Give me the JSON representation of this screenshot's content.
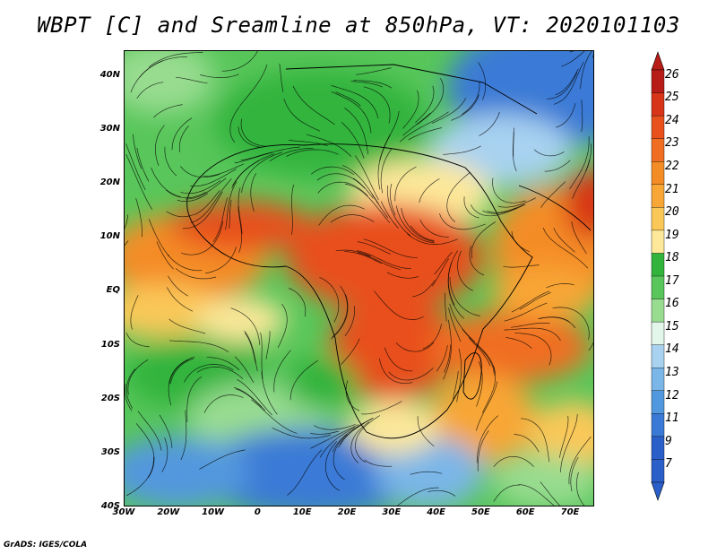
{
  "title": "WBPT [C] and Sreamline at 850hPa, VT: 2020101103",
  "footer": "GrADS: IGES/COLA",
  "y_ticks": [
    "40N",
    "30N",
    "20N",
    "10N",
    "EQ",
    "10S",
    "20S",
    "30S",
    "40S"
  ],
  "x_ticks": [
    "30W",
    "20W",
    "10W",
    "0",
    "10E",
    "20E",
    "30E",
    "40E",
    "50E",
    "60E",
    "70E"
  ],
  "colorbar": {
    "labels": [
      "26",
      "25",
      "24",
      "23",
      "22",
      "21",
      "20",
      "19",
      "18",
      "17",
      "16",
      "15",
      "14",
      "13",
      "12",
      "11",
      "9",
      "7"
    ],
    "colors": [
      "#b81c16",
      "#d83418",
      "#e8501c",
      "#f06e22",
      "#f48c26",
      "#f8a636",
      "#fac858",
      "#fde89a",
      "#32b43c",
      "#58c65a",
      "#98dc90",
      "#e2f6ea",
      "#a8d2f0",
      "#7ab6e8",
      "#5298de",
      "#3a7ad6",
      "#2a5ec8",
      "#2a5ec8"
    ]
  },
  "map": {
    "lon_range": [
      -30,
      75
    ],
    "lat_range": [
      -40,
      45
    ]
  }
}
